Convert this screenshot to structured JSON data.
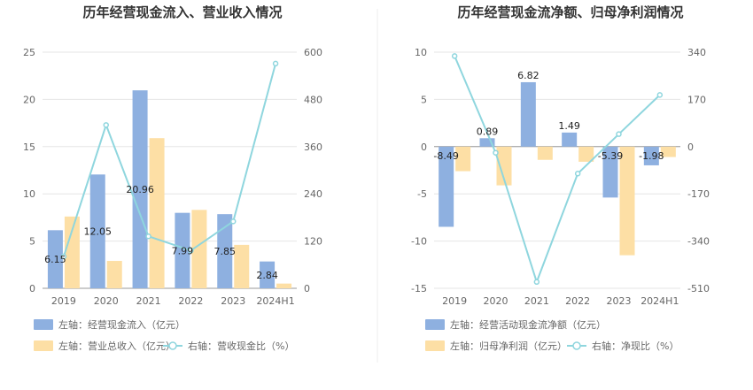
{
  "chart_data": [
    {
      "type": "bar",
      "title": "历年经营现金流入、营业收入情况",
      "categories": [
        "2019",
        "2020",
        "2021",
        "2022",
        "2023",
        "2024H1"
      ],
      "ylim_left": [
        0,
        25
      ],
      "yticks_left": [
        0,
        5,
        10,
        15,
        20,
        25
      ],
      "ylim_right": [
        0,
        600
      ],
      "yticks_right": [
        0,
        120,
        240,
        360,
        480,
        600
      ],
      "series": [
        {
          "name": "左轴：经营现金流入（亿元）",
          "type": "bar",
          "axis": "left",
          "color": "#8eb0e0",
          "values": [
            6.15,
            12.05,
            20.96,
            7.99,
            7.85,
            2.84
          ],
          "labels": [
            "6.15",
            "12.05",
            "20.96",
            "7.99",
            "7.85",
            "2.84"
          ]
        },
        {
          "name": "左轴：营业总收入（亿元）",
          "type": "bar",
          "axis": "left",
          "color": "#fddfa5",
          "values": [
            7.6,
            2.9,
            15.9,
            8.3,
            4.6,
            0.5
          ]
        },
        {
          "name": "右轴：营收现金比（%）",
          "type": "line",
          "axis": "right",
          "color": "#8fd6de",
          "values": [
            81,
            415,
            132,
            96,
            170,
            571
          ]
        }
      ],
      "legend": "bottom",
      "grid": true
    },
    {
      "type": "bar",
      "title": "历年经营现金流净额、归母净利润情况",
      "categories": [
        "2019",
        "2020",
        "2021",
        "2022",
        "2023",
        "2024H1"
      ],
      "ylim_left": [
        -15,
        10
      ],
      "yticks_left": [
        -15,
        -10,
        -5,
        0,
        5,
        10
      ],
      "ylim_right": [
        -510,
        340
      ],
      "yticks_right": [
        -510,
        -340,
        -170,
        0,
        170,
        340
      ],
      "series": [
        {
          "name": "左轴：经营活动现金流净额（亿元）",
          "type": "bar",
          "axis": "left",
          "color": "#8eb0e0",
          "values": [
            -8.49,
            0.89,
            6.82,
            1.49,
            -5.39,
            -1.98
          ],
          "labels": [
            "-8.49",
            "0.89",
            "6.82",
            "1.49",
            "-5.39",
            "-1.98"
          ]
        },
        {
          "name": "左轴：归母净利润（亿元）",
          "type": "bar",
          "axis": "left",
          "color": "#fddfa5",
          "values": [
            -2.6,
            -4.1,
            -1.4,
            -1.6,
            -11.5,
            -1.1
          ]
        },
        {
          "name": "右轴：净现比（%）",
          "type": "line",
          "axis": "right",
          "color": "#8fd6de",
          "values": [
            326,
            -22,
            -487,
            -97,
            45,
            186
          ]
        }
      ],
      "legend": "bottom",
      "grid": true
    }
  ]
}
